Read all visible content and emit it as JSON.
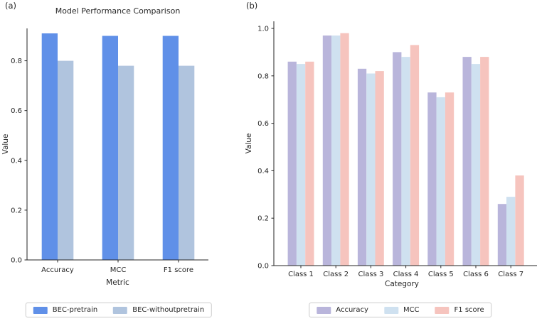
{
  "figure": {
    "panel_a_label": "(a)",
    "panel_b_label": "(b)",
    "background": "#ffffff",
    "text_color": "#262626",
    "axis_color": "#262626"
  },
  "chart_data": [
    {
      "type": "bar",
      "panel": "a",
      "title": "Model Performance Comparison",
      "xlabel": "Metric",
      "ylabel": "Value",
      "categories": [
        "Accuracy",
        "MCC",
        "F1 score"
      ],
      "series": [
        {
          "name": "BEC-pretrain",
          "color": "#6090E8",
          "values": [
            0.91,
            0.9,
            0.9
          ]
        },
        {
          "name": "BEC-withoutpretrain",
          "color": "#B0C4DE",
          "values": [
            0.8,
            0.78,
            0.78
          ]
        }
      ],
      "ylim": [
        0,
        0.93
      ],
      "yticks": [
        "0.0",
        "0.2",
        "0.4",
        "0.6",
        "0.8"
      ],
      "grid": false,
      "legend_position": "bottom"
    },
    {
      "type": "bar",
      "panel": "b",
      "title": "",
      "xlabel": "Category",
      "ylabel": "Value",
      "categories": [
        "Class 1",
        "Class 2",
        "Class 3",
        "Class 4",
        "Class 5",
        "Class 6",
        "Class 7"
      ],
      "series": [
        {
          "name": "Accuracy",
          "color": "#B9B5DB",
          "values": [
            0.86,
            0.97,
            0.83,
            0.9,
            0.73,
            0.88,
            0.26
          ]
        },
        {
          "name": "MCC",
          "color": "#CFE1F0",
          "values": [
            0.85,
            0.97,
            0.81,
            0.88,
            0.71,
            0.85,
            0.29
          ]
        },
        {
          "name": "F1 score",
          "color": "#F6C4BE",
          "values": [
            0.86,
            0.98,
            0.82,
            0.93,
            0.73,
            0.88,
            0.38
          ]
        }
      ],
      "ylim": [
        0,
        1.03
      ],
      "yticks": [
        "0.0",
        "0.2",
        "0.4",
        "0.6",
        "0.8",
        "1.0"
      ],
      "grid": false,
      "legend_position": "bottom"
    }
  ]
}
